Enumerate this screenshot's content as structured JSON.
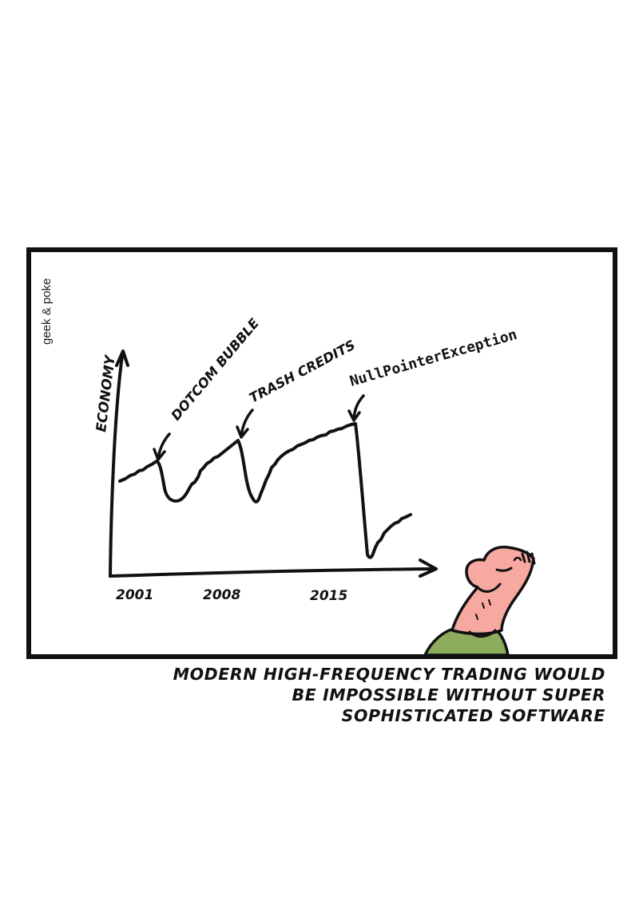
{
  "credit": "geek & poke",
  "chart": {
    "ylabel": "ECONOMY",
    "x_ticks": [
      "2001",
      "2008",
      "2015"
    ]
  },
  "annotations": {
    "dotcom": "DOTCOM BUBBLE",
    "trash": "TRASH CREDITS",
    "npe": "NullPointerException"
  },
  "caption": {
    "line1": "MODERN HIGH-FREQUENCY TRADING WOULD",
    "line2": "BE IMPOSSIBLE WITHOUT SUPER",
    "line3": "SOPHISTICATED SOFTWARE"
  },
  "colors": {
    "ink": "#111111",
    "skin": "#f7a8a0",
    "shirt": "#8cab5c",
    "background": "#ffffff"
  }
}
